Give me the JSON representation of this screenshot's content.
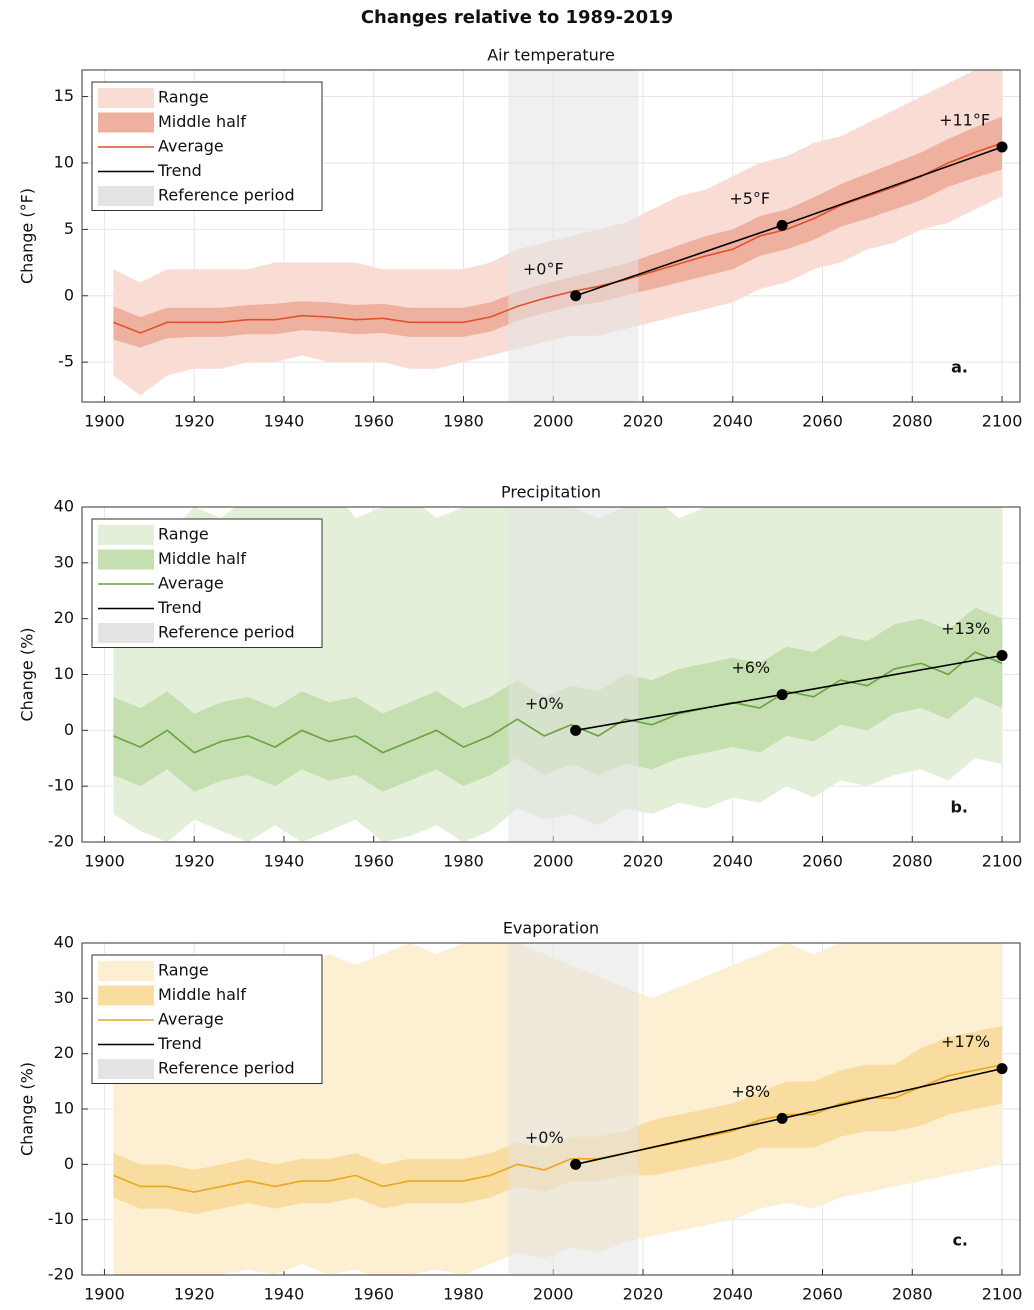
{
  "title": "Changes relative to 1989-2019",
  "chart_data": [
    {
      "type": "line",
      "title": "Air temperature",
      "ylabel": "Change (°F)",
      "annotation": "a.",
      "x": [
        1902,
        1908,
        1914,
        1920,
        1926,
        1932,
        1938,
        1944,
        1950,
        1956,
        1962,
        1968,
        1974,
        1980,
        1986,
        1992,
        1998,
        2004,
        2010,
        2016,
        2022,
        2028,
        2034,
        2040,
        2046,
        2052,
        2058,
        2064,
        2070,
        2076,
        2082,
        2088,
        2094,
        2100
      ],
      "xlim": [
        1895,
        2104
      ],
      "xticks": [
        1900,
        1920,
        1940,
        1960,
        1980,
        2000,
        2020,
        2040,
        2060,
        2080,
        2100
      ],
      "ylim": [
        -8,
        17
      ],
      "yticks": [
        -5,
        0,
        5,
        10,
        15
      ],
      "grid": true,
      "legend": "upper left",
      "series": [
        {
          "name": "Range",
          "color": "#f9ddd5",
          "low": [
            -6,
            -7.5,
            -6,
            -5.5,
            -5.5,
            -5,
            -5,
            -4.5,
            -5,
            -5,
            -5,
            -5.5,
            -5.5,
            -5,
            -4.5,
            -4,
            -3.5,
            -3,
            -3,
            -2.5,
            -2,
            -1.5,
            -1,
            -0.5,
            0.5,
            1,
            2,
            2.5,
            3.5,
            4,
            5,
            5.5,
            6.5,
            7.5
          ],
          "high": [
            2,
            1,
            2,
            2,
            2,
            2,
            2.5,
            2.5,
            2.5,
            2.5,
            2,
            2,
            2,
            2,
            2.5,
            3.5,
            4,
            4.5,
            5,
            5.5,
            6.5,
            7.5,
            8,
            9,
            10,
            10.5,
            11.5,
            12,
            13,
            14,
            15,
            16,
            17,
            17
          ]
        },
        {
          "name": "Middle half",
          "color": "#efb19f",
          "low": [
            -3.3,
            -3.9,
            -3.2,
            -3.1,
            -3.1,
            -2.9,
            -2.9,
            -2.6,
            -2.7,
            -2.9,
            -2.8,
            -3.1,
            -3.1,
            -3.1,
            -2.7,
            -1.9,
            -1.3,
            -0.8,
            -0.5,
            0,
            0.5,
            1,
            1.5,
            2,
            3,
            3.5,
            4.2,
            5.2,
            5.8,
            6.5,
            7.2,
            8.2,
            8.9,
            9.5
          ],
          "high": [
            -0.8,
            -1.6,
            -0.9,
            -0.9,
            -0.9,
            -0.7,
            -0.6,
            -0.4,
            -0.5,
            -0.7,
            -0.6,
            -0.9,
            -0.9,
            -0.9,
            -0.5,
            0.3,
            0.9,
            1.4,
            1.9,
            2.4,
            3.1,
            3.8,
            4.5,
            5,
            6,
            6.5,
            7.4,
            8.4,
            9.2,
            10,
            10.8,
            11.8,
            12.7,
            13.5
          ]
        },
        {
          "name": "Average",
          "color": "#e2502b",
          "values": [
            -2,
            -2.8,
            -2,
            -2,
            -2,
            -1.8,
            -1.8,
            -1.5,
            -1.6,
            -1.8,
            -1.7,
            -2,
            -2,
            -2,
            -1.6,
            -0.8,
            -0.2,
            0.3,
            0.7,
            1.2,
            1.8,
            2.4,
            3,
            3.5,
            4.5,
            5,
            5.8,
            6.8,
            7.5,
            8.2,
            9,
            10,
            10.8,
            11.5
          ]
        },
        {
          "name": "Trend",
          "color": "#000000",
          "x": [
            2005,
            2051,
            2100
          ],
          "values": [
            0,
            5.3,
            11.2
          ],
          "value_labels": [
            "+0°F",
            "+5°F",
            "+11°F"
          ]
        },
        {
          "name": "Reference period",
          "color": "#e4e4e4",
          "x": [
            1990,
            2019
          ]
        }
      ]
    },
    {
      "type": "line",
      "title": "Precipitation",
      "ylabel": "Change (%)",
      "annotation": "b.",
      "x": [
        1902,
        1908,
        1914,
        1920,
        1926,
        1932,
        1938,
        1944,
        1950,
        1956,
        1962,
        1968,
        1974,
        1980,
        1986,
        1992,
        1998,
        2004,
        2010,
        2016,
        2022,
        2028,
        2034,
        2040,
        2046,
        2052,
        2058,
        2064,
        2070,
        2076,
        2082,
        2088,
        2094,
        2100
      ],
      "xlim": [
        1895,
        2104
      ],
      "xticks": [
        1900,
        1920,
        1940,
        1960,
        1980,
        2000,
        2020,
        2040,
        2060,
        2080,
        2100
      ],
      "ylim": [
        -20,
        40
      ],
      "yticks": [
        -20,
        -10,
        0,
        10,
        20,
        30,
        40
      ],
      "grid": true,
      "legend": "upper left",
      "series": [
        {
          "name": "Range",
          "color": "#e4efd9",
          "low": [
            -15,
            -18,
            -20,
            -16,
            -18,
            -20,
            -17,
            -20,
            -18,
            -16,
            -20,
            -19,
            -17,
            -20,
            -18,
            -14,
            -16,
            -15,
            -17,
            -14,
            -15,
            -13,
            -14,
            -12,
            -13,
            -10,
            -12,
            -9,
            -10,
            -8,
            -7,
            -9,
            -5,
            -6
          ],
          "high": [
            25,
            30,
            35,
            40,
            38,
            42,
            40,
            45,
            44,
            38,
            40,
            42,
            38,
            40,
            42,
            45,
            42,
            40,
            38,
            40,
            42,
            38,
            40,
            42,
            44,
            40,
            42,
            45,
            40,
            43,
            45,
            42,
            44,
            45
          ]
        },
        {
          "name": "Middle half",
          "color": "#c5dfb0",
          "low": [
            -8,
            -10,
            -7,
            -11,
            -9,
            -8,
            -10,
            -7,
            -9,
            -8,
            -11,
            -9,
            -7,
            -10,
            -8,
            -5,
            -8,
            -6,
            -8,
            -6,
            -7,
            -5,
            -4,
            -3,
            -4,
            -1,
            -2,
            1,
            0,
            3,
            4,
            2,
            6,
            4
          ],
          "high": [
            6,
            4,
            7,
            3,
            5,
            6,
            4,
            7,
            5,
            6,
            3,
            5,
            7,
            4,
            6,
            9,
            6,
            8,
            7,
            10,
            9,
            11,
            12,
            13,
            12,
            15,
            14,
            17,
            16,
            19,
            20,
            18,
            22,
            20
          ]
        },
        {
          "name": "Average",
          "color": "#6aa33f",
          "values": [
            -1,
            -3,
            0,
            -4,
            -2,
            -1,
            -3,
            0,
            -2,
            -1,
            -4,
            -2,
            0,
            -3,
            -1,
            2,
            -1,
            1,
            -1,
            2,
            1,
            3,
            4,
            5,
            4,
            7,
            6,
            9,
            8,
            11,
            12,
            10,
            14,
            12
          ]
        },
        {
          "name": "Trend",
          "color": "#000000",
          "x": [
            2005,
            2051,
            2100
          ],
          "values": [
            0,
            6.4,
            13.4
          ],
          "value_labels": [
            "+0%",
            "+6%",
            "+13%"
          ]
        },
        {
          "name": "Reference period",
          "color": "#e4e4e4",
          "x": [
            1990,
            2019
          ]
        }
      ]
    },
    {
      "type": "line",
      "title": "Evaporation",
      "ylabel": "Change (%)",
      "annotation": "c.",
      "x": [
        1902,
        1908,
        1914,
        1920,
        1926,
        1932,
        1938,
        1944,
        1950,
        1956,
        1962,
        1968,
        1974,
        1980,
        1986,
        1992,
        1998,
        2004,
        2010,
        2016,
        2022,
        2028,
        2034,
        2040,
        2046,
        2052,
        2058,
        2064,
        2070,
        2076,
        2082,
        2088,
        2094,
        2100
      ],
      "xlim": [
        1895,
        2104
      ],
      "xticks": [
        1900,
        1920,
        1940,
        1960,
        1980,
        2000,
        2020,
        2040,
        2060,
        2080,
        2100
      ],
      "ylim": [
        -20,
        40
      ],
      "yticks": [
        -20,
        -10,
        0,
        10,
        20,
        30,
        40
      ],
      "grid": true,
      "legend": "upper left",
      "series": [
        {
          "name": "Range",
          "color": "#fcefd2",
          "low": [
            -20,
            -22,
            -20,
            -21,
            -20,
            -19,
            -20,
            -18,
            -20,
            -19,
            -21,
            -20,
            -19,
            -20,
            -18,
            -16,
            -17,
            -15,
            -16,
            -14,
            -13,
            -12,
            -11,
            -10,
            -8,
            -7,
            -8,
            -6,
            -5,
            -4,
            -3,
            -2,
            -1,
            0
          ],
          "high": [
            15,
            18,
            20,
            25,
            28,
            30,
            32,
            35,
            38,
            36,
            38,
            40,
            38,
            40,
            42,
            40,
            38,
            36,
            34,
            32,
            30,
            32,
            34,
            36,
            38,
            40,
            38,
            40,
            42,
            40,
            42,
            44,
            42,
            40
          ]
        },
        {
          "name": "Middle half",
          "color": "#f8dca0",
          "low": [
            -6,
            -8,
            -8,
            -9,
            -8,
            -7,
            -8,
            -7,
            -7,
            -6,
            -8,
            -7,
            -7,
            -7,
            -6,
            -4,
            -5,
            -3,
            -3,
            -2,
            -2,
            -1,
            0,
            1,
            3,
            3,
            3,
            5,
            6,
            6,
            7,
            9,
            10,
            11
          ],
          "high": [
            2,
            0,
            0,
            -1,
            0,
            1,
            0,
            1,
            1,
            2,
            0,
            1,
            1,
            1,
            2,
            4,
            3,
            5,
            5,
            6,
            8,
            9,
            10,
            11,
            13,
            15,
            15,
            17,
            18,
            18,
            21,
            23,
            24,
            25
          ]
        },
        {
          "name": "Average",
          "color": "#e9a820",
          "values": [
            -2,
            -4,
            -4,
            -5,
            -4,
            -3,
            -4,
            -3,
            -3,
            -2,
            -4,
            -3,
            -3,
            -3,
            -2,
            0,
            -1,
            1,
            1,
            2,
            3,
            4,
            5,
            6,
            8,
            9,
            9,
            11,
            12,
            12,
            14,
            16,
            17,
            18
          ]
        },
        {
          "name": "Trend",
          "color": "#000000",
          "x": [
            2005,
            2051,
            2100
          ],
          "values": [
            0,
            8.3,
            17.3
          ],
          "value_labels": [
            "+0%",
            "+8%",
            "+17%"
          ]
        },
        {
          "name": "Reference period",
          "color": "#e4e4e4",
          "x": [
            1990,
            2019
          ]
        }
      ]
    }
  ]
}
